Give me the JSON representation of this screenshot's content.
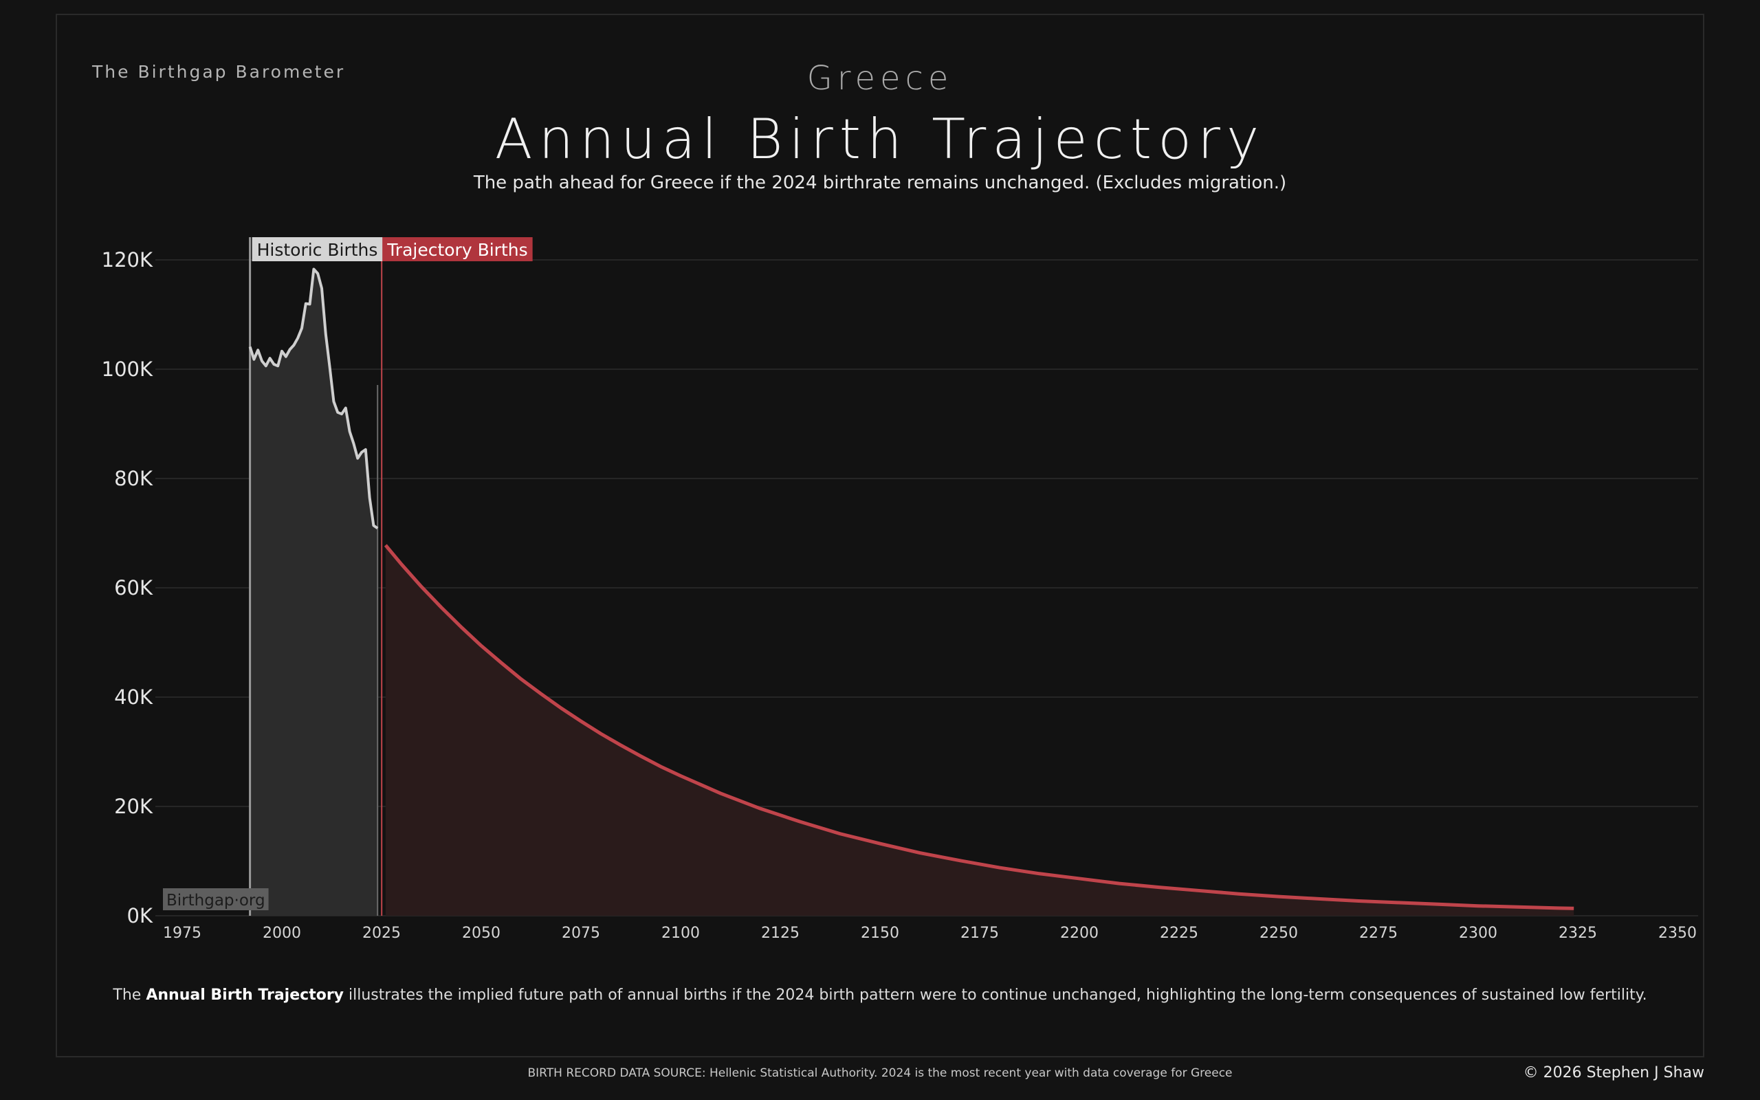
{
  "header": {
    "brand": "The Birthgap Barometer",
    "country": "Greece",
    "title": "Annual Birth Trajectory",
    "subtitle": "The path ahead for Greece if the 2024 birthrate remains unchanged.  (Excludes migration.)"
  },
  "caption": {
    "prefix": "The ",
    "bold": "Annual Birth Trajectory",
    "suffix": " illustrates the implied future path of annual births if the 2024 birth pattern were to continue unchanged, highlighting the long-term consequences of sustained low fertility."
  },
  "footer": {
    "source": "BIRTH RECORD DATA SOURCE: Hellenic Statistical Authority. 2024 is the most recent year with data coverage for Greece",
    "copyright": "© 2026 Stephen J Shaw"
  },
  "colors": {
    "historic_line": "#cfcfcf",
    "historic_fill": "#2c2c2c",
    "trajectory_line": "#c0444b",
    "trajectory_fill": "#2a1b1b",
    "grid": "#262626",
    "historic_label_bg": "#d4d4d4",
    "trajectory_label_bg": "#b0353d"
  },
  "chart_data": {
    "type": "area",
    "title": "Annual Birth Trajectory",
    "xlabel": "",
    "ylabel": "",
    "xlim": [
      1970,
      2355
    ],
    "ylim": [
      0,
      120000
    ],
    "x_ticks": [
      1975,
      2000,
      2025,
      2050,
      2075,
      2100,
      2125,
      2150,
      2175,
      2200,
      2225,
      2250,
      2275,
      2300,
      2325,
      2350
    ],
    "y_ticks": [
      0,
      20000,
      40000,
      60000,
      80000,
      100000,
      120000
    ],
    "y_tick_labels": [
      "0K",
      "20K",
      "40K",
      "60K",
      "80K",
      "100K",
      "120K"
    ],
    "watermark": "Birthgap·org",
    "series": [
      {
        "name": "Historic Births",
        "label": "Historic Births",
        "x": [
          1992,
          1993,
          1994,
          1995,
          1996,
          1997,
          1998,
          1999,
          2000,
          2001,
          2002,
          2003,
          2004,
          2005,
          2006,
          2007,
          2008,
          2009,
          2010,
          2011,
          2012,
          2013,
          2014,
          2015,
          2016,
          2017,
          2018,
          2019,
          2020,
          2021,
          2022,
          2023,
          2024
        ],
        "values": [
          104100,
          101800,
          103500,
          101500,
          100600,
          102000,
          100900,
          100600,
          103300,
          102300,
          103600,
          104400,
          105700,
          107500,
          112000,
          111900,
          118300,
          117500,
          114800,
          106400,
          100400,
          94100,
          92100,
          91800,
          92900,
          88600,
          86400,
          83700,
          84800,
          85300,
          76500,
          71400,
          70900
        ]
      },
      {
        "name": "Trajectory Births",
        "label": "Trajectory Births",
        "x": [
          2026,
          2030,
          2035,
          2040,
          2045,
          2050,
          2055,
          2060,
          2065,
          2070,
          2075,
          2080,
          2085,
          2090,
          2095,
          2100,
          2110,
          2120,
          2130,
          2140,
          2150,
          2160,
          2170,
          2180,
          2190,
          2200,
          2210,
          2220,
          2230,
          2240,
          2250,
          2260,
          2270,
          2280,
          2290,
          2300,
          2310,
          2320,
          2324
        ],
        "values": [
          67800,
          64300,
          60200,
          56400,
          52800,
          49400,
          46300,
          43300,
          40600,
          38000,
          35600,
          33300,
          31200,
          29200,
          27300,
          25600,
          22400,
          19600,
          17200,
          15000,
          13200,
          11500,
          10100,
          8800,
          7700,
          6800,
          5900,
          5200,
          4600,
          4000,
          3500,
          3100,
          2700,
          2400,
          2100,
          1800,
          1600,
          1400,
          1350
        ]
      }
    ]
  }
}
